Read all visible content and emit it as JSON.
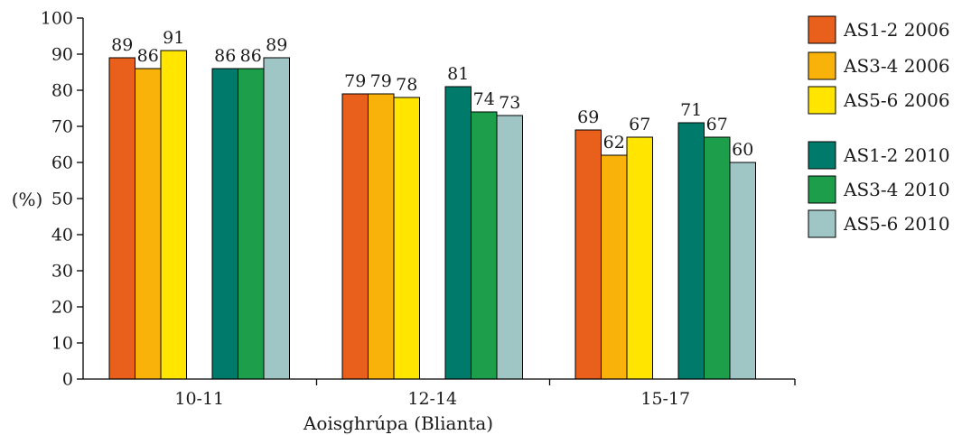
{
  "chart_data": {
    "type": "bar",
    "title": "",
    "xlabel": "Aoisghrúpa (Blianta)",
    "ylabel": "(%)",
    "ylim": [
      0,
      100
    ],
    "yticks": [
      "0",
      "10",
      "20",
      "30",
      "40",
      "50",
      "60",
      "70",
      "80",
      "90",
      "100"
    ],
    "categories": [
      "10-11",
      "12-14",
      "15-17"
    ],
    "series": [
      {
        "name": "AS1-2 2006",
        "color": "#e8601c",
        "values": [
          89,
          79,
          69
        ],
        "labels": [
          "89",
          "79",
          "69"
        ]
      },
      {
        "name": "AS3-4 2006",
        "color": "#f9b20a",
        "values": [
          86,
          79,
          62
        ],
        "labels": [
          "86",
          "79",
          "62"
        ]
      },
      {
        "name": "AS5-6 2006",
        "color": "#ffe500",
        "values": [
          91,
          78,
          67
        ],
        "labels": [
          "91",
          "78",
          "67"
        ]
      },
      {
        "name": "AS1-2 2010",
        "color": "#007a6a",
        "values": [
          86,
          81,
          71
        ],
        "labels": [
          "86",
          "81",
          "71"
        ]
      },
      {
        "name": "AS3-4 2010",
        "color": "#1d9e4a",
        "values": [
          86,
          74,
          67
        ],
        "labels": [
          "86",
          "74",
          "67"
        ]
      },
      {
        "name": "AS5-6 2010",
        "color": "#9fc6c4",
        "values": [
          89,
          73,
          60
        ],
        "labels": [
          "89",
          "73",
          "60"
        ]
      }
    ],
    "legend_position": "right",
    "grid": false
  }
}
